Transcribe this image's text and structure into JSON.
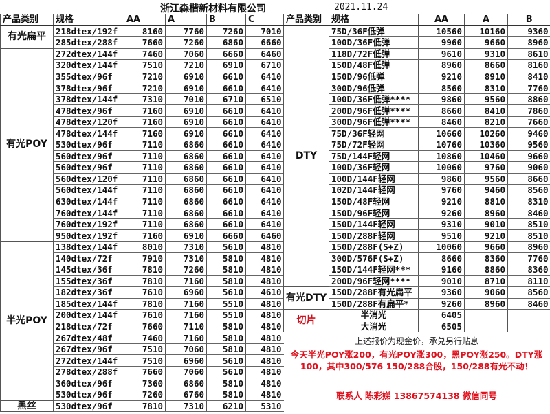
{
  "header": {
    "company": "浙江森楷新材料有限公司",
    "date": "2021.11.24"
  },
  "left": {
    "columns": [
      "产品类别",
      "规格",
      "AA",
      "A",
      "B",
      "C"
    ],
    "groups": [
      {
        "category": "有光扁平",
        "rows": [
          [
            "218dtex/192f",
            "8160",
            "7760",
            "7260",
            "7010"
          ],
          [
            "285dtex/288f",
            "7660",
            "7260",
            "6860",
            "6660"
          ]
        ]
      },
      {
        "category": "有光POY",
        "rows": [
          [
            "272dtex/144f",
            "7460",
            "7060",
            "6660",
            "6460"
          ],
          [
            "320dtex/144f",
            "7510",
            "7210",
            "6910",
            "6710"
          ],
          [
            "355dtex/96f",
            "7210",
            "6910",
            "6610",
            "6410"
          ],
          [
            "378dtex/96f",
            "7210",
            "6910",
            "6610",
            "6410"
          ],
          [
            "378dtex/144f",
            "7310",
            "7010",
            "6710",
            "6510"
          ],
          [
            "478dtex/96f",
            "7160",
            "6910",
            "6610",
            "6410"
          ],
          [
            "478dtex/120f",
            "7160",
            "6910",
            "6610",
            "6410"
          ],
          [
            "478dtex/144f",
            "7160",
            "6910",
            "6610",
            "6410"
          ],
          [
            "530dtex/96f",
            "7110",
            "6860",
            "6610",
            "6410"
          ],
          [
            "560dtex/96f",
            "7110",
            "6860",
            "6610",
            "6410"
          ],
          [
            "560dtex/96f",
            "7110",
            "6860",
            "6610",
            "6410"
          ],
          [
            "560dtex/120f",
            "7110",
            "6860",
            "6610",
            "6410"
          ],
          [
            "560dtex/144f",
            "7110",
            "6860",
            "6610",
            "6410"
          ],
          [
            "630dtex/144f",
            "7110",
            "6860",
            "6610",
            "6410"
          ],
          [
            "760dtex/144f",
            "7110",
            "6860",
            "6610",
            "6410"
          ],
          [
            "760dtex/192f",
            "7110",
            "6860",
            "6610",
            "6410"
          ],
          [
            "950dtex/192f",
            "7160",
            "6910",
            "6660",
            "6460"
          ]
        ]
      },
      {
        "category": "半光POY",
        "rows": [
          [
            "138dtex/144f",
            "8010",
            "7310",
            "5610",
            "4810"
          ],
          [
            "140dtex/72f",
            "7910",
            "7310",
            "5810",
            "4810"
          ],
          [
            "145dtex/36f",
            "7810",
            "7260",
            "5810",
            "4810"
          ],
          [
            "155dtex/36f",
            "7810",
            "7160",
            "5810",
            "4810"
          ],
          [
            "182dtex/36f",
            "7610",
            "6960",
            "5610",
            "4610"
          ],
          [
            "185dtex/144f",
            "7810",
            "7160",
            "5510",
            "4810"
          ],
          [
            "200dtex/144f",
            "7610",
            "7160",
            "5510",
            "4810"
          ],
          [
            "218dtex/72f",
            "7660",
            "7110",
            "5810",
            "4810"
          ],
          [
            "267dtex/48f",
            "7460",
            "7160",
            "5810",
            "4810"
          ],
          [
            "267dtex/96f",
            "7510",
            "7060",
            "5810",
            "4810"
          ],
          [
            "272dtex/144f",
            "7510",
            "6960",
            "5610",
            "4810"
          ],
          [
            "278dtex/288f",
            "7660",
            "7060",
            "5610",
            "4810"
          ],
          [
            "360dtex/96f",
            "7360",
            "6860",
            "5810",
            "4810"
          ],
          [
            "530dtex/96f",
            "7260",
            "6760",
            "5810",
            "4810"
          ]
        ]
      },
      {
        "category": "黑丝",
        "rows": [
          [
            "530dtex/96f",
            "7810",
            "7310",
            "6210",
            "5310"
          ]
        ]
      }
    ]
  },
  "right": {
    "columns": [
      "产品类别",
      "规格",
      "AA",
      "A",
      "B"
    ],
    "groups": [
      {
        "category": "DTY",
        "rows": [
          [
            "75D/36F低弹",
            "10560",
            "10160",
            "9360"
          ],
          [
            "100D/36F低弹",
            "9960",
            "9660",
            "8960"
          ],
          [
            "118D/72F低弹",
            "9610",
            "9310",
            "8610"
          ],
          [
            "150D/48F低弹",
            "8960",
            "8660",
            "8160"
          ],
          [
            "150D/96低弹",
            "9210",
            "8910",
            "8410"
          ],
          [
            "300D/96低弹",
            "8560",
            "8310",
            "7760"
          ],
          [
            "100D/36F低弹****",
            "9860",
            "9560",
            "8860"
          ],
          [
            "200D/96F低弹****",
            "8660",
            "8410",
            "7860"
          ],
          [
            "300D/96F低弹****",
            "8460",
            "8210",
            "7660"
          ],
          [
            "75D/36F轻网",
            "10660",
            "10260",
            "9460"
          ],
          [
            "75D/72F轻网",
            "10760",
            "10360",
            "9560"
          ],
          [
            "75D/144F轻网",
            "10860",
            "10460",
            "9660"
          ],
          [
            "100D/36F轻网",
            "10060",
            "9760",
            "9060"
          ],
          [
            "100D/144F轻网",
            "9860",
            "9560",
            "8660"
          ],
          [
            "102D/144F轻网",
            "9760",
            "9460",
            "8560"
          ],
          [
            "150D/48F轻网",
            "9210",
            "8810",
            "8310"
          ],
          [
            "150D/96F轻网",
            "9260",
            "8960",
            "8460"
          ],
          [
            "150D/144F轻网",
            "9310",
            "9010",
            "8510"
          ],
          [
            "150D/288F轻网",
            "9510",
            "9210",
            "8510"
          ],
          [
            "150D/288F(S+Z)",
            "10060",
            "9660",
            "8960"
          ],
          [
            "300D/576F(S+Z)",
            "8660",
            "8360",
            "7760"
          ],
          [
            "150D/144F轻网***",
            "9160",
            "8860",
            "8360"
          ],
          [
            "200D/96F轻网****",
            "9010",
            "8710",
            "8110"
          ]
        ]
      },
      {
        "category": "有光DTY",
        "rows": [
          [
            "150D/288F有光扁平",
            "9360",
            "9060",
            "8560"
          ],
          [
            "150D/288F有扁平*",
            "9260",
            "8960",
            "8460"
          ]
        ]
      },
      {
        "category": "切片",
        "red": true,
        "rows": [
          [
            "半消光",
            "6405",
            "",
            ""
          ],
          [
            "大消光",
            "6505",
            "",
            ""
          ]
        ]
      }
    ]
  },
  "notes": {
    "cash_note": "上述报价为现金价，承兑另行贴息",
    "update": "今天半光POY涨200，有光POY涨300，黑POY涨250。DTY涨100，其中300/576 150/288合股，150/288有光不动！",
    "contact": "联系人 陈彩娣 13867574138 微信同号"
  },
  "colors": {
    "accent_red": "#e0101c"
  }
}
